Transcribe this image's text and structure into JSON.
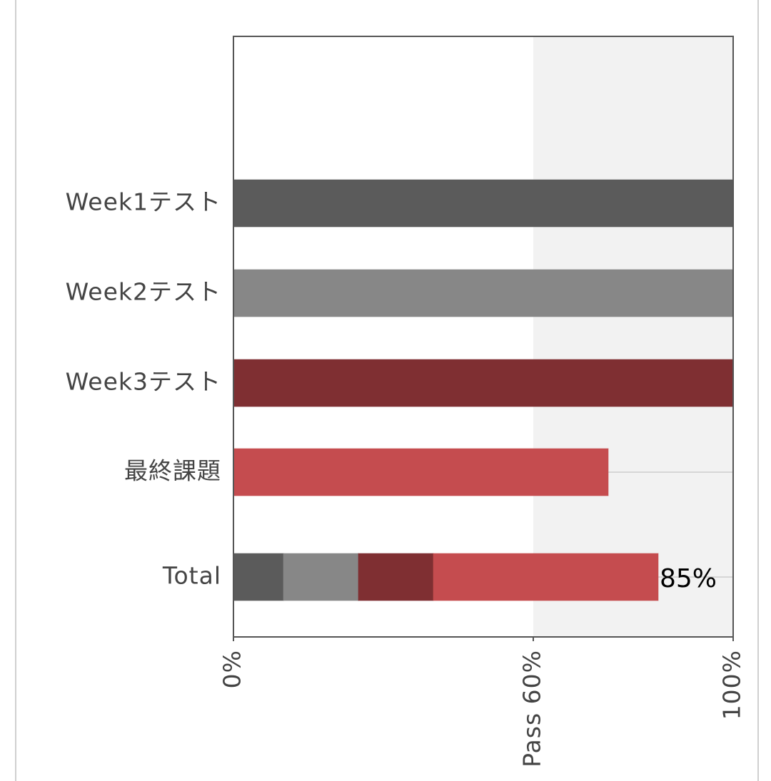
{
  "chart_data": {
    "type": "stacked-bar-horizontal",
    "categories": [
      "Week1テスト",
      "Week2テスト",
      "Week3テスト",
      "最終課題",
      "Total"
    ],
    "series": [
      {
        "color": "#5b5b5b",
        "values": [
          100,
          null,
          null,
          null,
          10
        ]
      },
      {
        "color": "#878787",
        "values": [
          null,
          100,
          null,
          null,
          15
        ]
      },
      {
        "color": "#7f2f32",
        "values": [
          null,
          null,
          100,
          null,
          15
        ]
      },
      {
        "color": "#c54c4f",
        "values": [
          null,
          null,
          null,
          75,
          45
        ]
      }
    ],
    "total_labels": [
      null,
      null,
      null,
      null,
      "85%"
    ],
    "xlim": [
      0,
      100
    ],
    "xticks": [
      {
        "value": 0,
        "label": "0%"
      },
      {
        "value": 60,
        "label": "Pass 60%"
      },
      {
        "value": 100,
        "label": "100%"
      }
    ],
    "shade": [
      60,
      100
    ],
    "shade_color": "#f2f2f2"
  }
}
